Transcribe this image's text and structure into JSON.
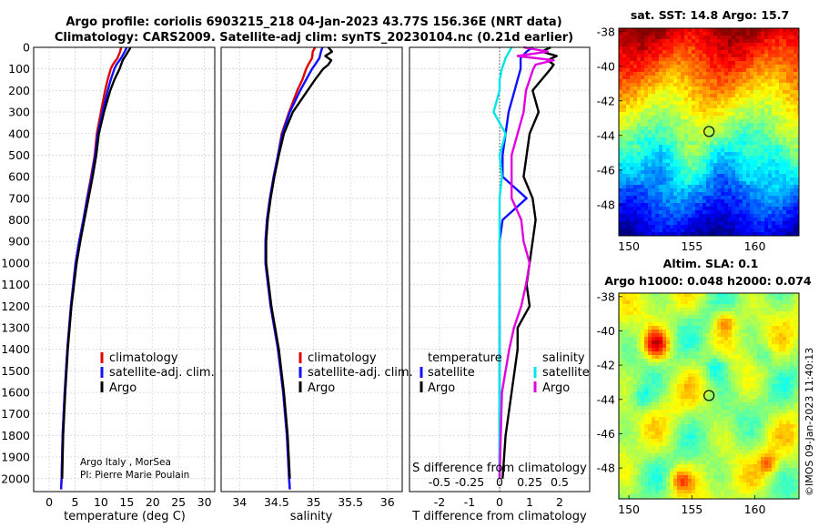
{
  "title_line1": "Argo profile: coriolis 6903215_218 04-Jan-2023 43.77S 156.36E (NRT data)",
  "title_line2": "Climatology: CARS2009. Satellite-adj clim: synTS_20230104.nc (0.21d earlier)",
  "credit_line1": "Argo Italy , MorSea",
  "credit_line2": "PI: Pierre Marie Poulain",
  "imos_stamp": "©IMOS 09-Jan-2023 11:40:13",
  "depth_ticks": [
    0,
    100,
    200,
    300,
    400,
    500,
    600,
    700,
    800,
    900,
    1000,
    1100,
    1200,
    1300,
    1400,
    1500,
    1600,
    1700,
    1800,
    1900,
    2000
  ],
  "colors": {
    "climatology": "#e00000",
    "satellite_adj": "#1010ff",
    "argo": "#000000",
    "temp_sat": "#00e5e5",
    "sal_sat": "#e000e0"
  },
  "chart_data": [
    {
      "type": "line",
      "panel": "temperature",
      "xlabel": "temperature (deg C)",
      "xlim": [
        -3,
        32
      ],
      "xticks": [
        0,
        5,
        10,
        15,
        20,
        25,
        30
      ],
      "ylim": [
        2060,
        0
      ],
      "legend": [
        "climatology",
        "satellite-adj. clim.",
        "Argo"
      ],
      "legend_position": "lower-center",
      "series": [
        {
          "name": "climatology",
          "depth": [
            0,
            20,
            50,
            80,
            100,
            150,
            200,
            300,
            400,
            500,
            600,
            700,
            800,
            900,
            1000,
            1200,
            1400,
            1600,
            1800,
            2000,
            2050
          ],
          "values": [
            13.9,
            13.7,
            13.2,
            12.3,
            11.9,
            11.3,
            10.8,
            10.0,
            9.2,
            8.8,
            8.1,
            7.3,
            6.6,
            5.8,
            5.1,
            4.2,
            3.5,
            3.0,
            2.6,
            2.4,
            2.3
          ]
        },
        {
          "name": "satellite-adj. clim.",
          "depth": [
            0,
            20,
            50,
            80,
            100,
            150,
            200,
            300,
            400,
            500,
            600,
            700,
            800,
            900,
            1000,
            1200,
            1400,
            1600,
            1800,
            2000,
            2050
          ],
          "values": [
            15.0,
            14.6,
            13.9,
            13.0,
            12.6,
            11.9,
            11.3,
            10.3,
            9.4,
            8.9,
            8.2,
            7.4,
            6.6,
            5.8,
            5.1,
            4.2,
            3.5,
            3.0,
            2.6,
            2.4,
            2.3
          ]
        },
        {
          "name": "Argo",
          "depth": [
            0,
            10,
            30,
            60,
            100,
            150,
            200,
            300,
            400,
            500,
            600,
            700,
            800,
            900,
            1000,
            1200,
            1400,
            1600,
            1800,
            2000
          ],
          "values": [
            15.7,
            15.5,
            15.0,
            14.2,
            13.6,
            12.6,
            11.8,
            10.6,
            9.6,
            9.1,
            8.4,
            7.6,
            6.8,
            6.0,
            5.3,
            4.3,
            3.6,
            3.1,
            2.7,
            2.5
          ]
        }
      ]
    },
    {
      "type": "line",
      "panel": "salinity",
      "xlabel": "salinity",
      "xticks": [
        34,
        34.5,
        35,
        35.5,
        36
      ],
      "xlim": [
        33.75,
        36.2
      ],
      "ylim": [
        2060,
        0
      ],
      "legend": [
        "climatology",
        "satellite-adj. clim.",
        "Argo"
      ],
      "legend_position": "lower-center",
      "series": [
        {
          "name": "climatology",
          "depth": [
            0,
            20,
            50,
            80,
            100,
            150,
            200,
            300,
            400,
            500,
            600,
            700,
            800,
            900,
            1000,
            1200,
            1400,
            1600,
            1800,
            2000,
            2050
          ],
          "values": [
            35.02,
            34.99,
            34.98,
            34.93,
            34.9,
            34.85,
            34.78,
            34.67,
            34.57,
            34.52,
            34.46,
            34.41,
            34.37,
            34.35,
            34.35,
            34.42,
            34.52,
            34.59,
            34.64,
            34.67,
            34.68
          ]
        },
        {
          "name": "satellite-adj. clim.",
          "depth": [
            0,
            20,
            50,
            80,
            100,
            150,
            200,
            300,
            400,
            500,
            600,
            700,
            800,
            900,
            1000,
            1200,
            1400,
            1600,
            1800,
            2000,
            2050
          ],
          "values": [
            35.12,
            35.1,
            35.08,
            35.02,
            34.98,
            34.9,
            34.82,
            34.68,
            34.58,
            34.52,
            34.46,
            34.41,
            34.37,
            34.35,
            34.35,
            34.42,
            34.52,
            34.59,
            34.64,
            34.67,
            34.68
          ]
        },
        {
          "name": "Argo",
          "depth": [
            0,
            20,
            40,
            60,
            80,
            100,
            150,
            200,
            300,
            400,
            500,
            600,
            700,
            800,
            900,
            1000,
            1200,
            1400,
            1600,
            1800,
            2000
          ],
          "values": [
            35.2,
            35.25,
            35.16,
            35.24,
            35.2,
            35.13,
            35.02,
            34.92,
            34.72,
            34.6,
            34.53,
            34.47,
            34.42,
            34.38,
            34.36,
            34.36,
            34.43,
            34.53,
            34.6,
            34.65,
            34.68
          ]
        }
      ]
    },
    {
      "type": "line",
      "panel": "differences",
      "xlabel": "T difference from climatology",
      "xlabel_top": "S difference from climatology",
      "xticks_T": [
        -2,
        -1,
        0,
        1,
        2
      ],
      "xticks_S": [
        -0.5,
        -0.25,
        0,
        0.25,
        0.5
      ],
      "xticks_S_labels": [
        "-0.5",
        "-0.25",
        "0",
        "0.25",
        "0.5"
      ],
      "xlim": [
        -3,
        3
      ],
      "ylim": [
        2060,
        0
      ],
      "legend_temperature_title": "temperature",
      "legend_salinity_title": "salinity",
      "legend_temperature": [
        "satellite",
        "Argo"
      ],
      "legend_salinity": [
        "satellite",
        "Argo"
      ],
      "series": [
        {
          "name": "T satellite",
          "depth": [
            0,
            20,
            50,
            80,
            100,
            150,
            200,
            300,
            400,
            500,
            600,
            700,
            800,
            900,
            1000,
            1100,
            1200,
            1400,
            1600,
            1800,
            2000
          ],
          "values": [
            1.1,
            0.9,
            0.7,
            0.7,
            0.7,
            0.6,
            0.5,
            0.3,
            0.2,
            0.1,
            0.1,
            0.9,
            0.1,
            0.0,
            0.0,
            0.0,
            0.0,
            0.0,
            0.0,
            0.0,
            0.0
          ]
        },
        {
          "name": "T Argo",
          "depth": [
            0,
            20,
            40,
            60,
            80,
            100,
            150,
            200,
            300,
            400,
            500,
            600,
            700,
            800,
            900,
            1000,
            1100,
            1200,
            1300,
            1400,
            1500,
            1600,
            1800,
            2000
          ],
          "values": [
            1.7,
            1.4,
            1.9,
            1.6,
            1.8,
            1.7,
            1.4,
            1.1,
            1.3,
            1.0,
            0.9,
            0.8,
            1.1,
            1.2,
            1.1,
            1.0,
            0.9,
            1.0,
            0.6,
            0.6,
            0.5,
            0.4,
            0.2,
            0.1
          ]
        },
        {
          "name": "S satellite",
          "depth": [
            0,
            50,
            100,
            150,
            200,
            300,
            400,
            500,
            600,
            700,
            800,
            1000,
            1200,
            1400,
            1600,
            1800,
            2000
          ],
          "values": [
            0.1,
            0.05,
            0.02,
            0.0,
            0.0,
            -0.05,
            0.05,
            0.0,
            0.02,
            0.0,
            0.0,
            0.0,
            0.0,
            0.0,
            0.0,
            0.0,
            0.0
          ]
        },
        {
          "name": "S Argo",
          "depth": [
            0,
            20,
            40,
            60,
            80,
            100,
            150,
            200,
            300,
            400,
            500,
            700,
            800,
            900,
            1000,
            1100,
            1200,
            1300,
            1400,
            1500,
            1600,
            1800,
            2000
          ],
          "values": [
            0.2,
            0.4,
            0.15,
            0.45,
            0.3,
            0.28,
            0.25,
            0.22,
            0.2,
            0.15,
            0.1,
            0.1,
            0.18,
            0.2,
            0.25,
            0.22,
            0.18,
            0.12,
            0.08,
            0.05,
            0.02,
            0.01,
            0.0
          ]
        }
      ]
    },
    {
      "type": "heatmap",
      "panel": "sst_map",
      "title": "sat. SST: 14.8 Argo: 15.7",
      "xticks": [
        150,
        155,
        160
      ],
      "yticks": [
        -38,
        -40,
        -42,
        -44,
        -46,
        -48
      ],
      "xlim": [
        149.2,
        163.5
      ],
      "ylim": [
        -49.8,
        -37.8
      ],
      "float_position": [
        156.36,
        -43.77
      ]
    },
    {
      "type": "heatmap",
      "panel": "sla_map",
      "title_line1": "Altim. SLA: 0.1",
      "title_line2": "Argo h1000: 0.048 h2000: 0.074",
      "xticks": [
        150,
        155,
        160
      ],
      "yticks": [
        -38,
        -40,
        -42,
        -44,
        -46,
        -48
      ],
      "xlim": [
        149.2,
        163.5
      ],
      "ylim": [
        -49.8,
        -37.8
      ],
      "float_position": [
        156.36,
        -43.77
      ]
    }
  ]
}
